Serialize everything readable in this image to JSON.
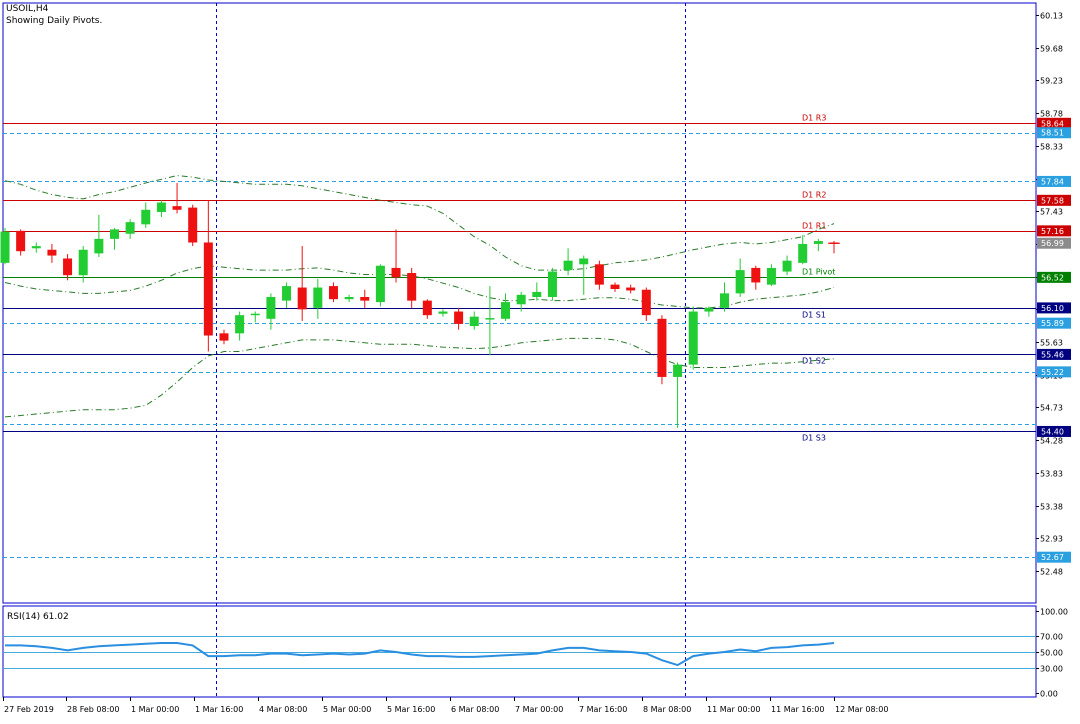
{
  "header": {
    "symbol": "USOIL,H4",
    "subtitle": "Showing Daily Pivots."
  },
  "colors": {
    "bull": "#22cc33",
    "bear": "#ee1111",
    "frame": "#0000cc",
    "axis_text": "#000000",
    "resistance_line": "#cc0000",
    "support_line": "#000080",
    "pivot_line": "#008000",
    "dotted_level": "#2aa0e0",
    "grid_dash": "#0000cc",
    "bands": "#2a7a2a",
    "rsi_line": "#2a8fe0",
    "rsi_level": "#44aadd"
  },
  "chart_data": [
    {
      "type": "candlestick",
      "title": "USOIL,H4",
      "subtitle": "Showing Daily Pivots.",
      "ylim": [
        52.1,
        60.3
      ],
      "y_ticks": [
        "60.13",
        "59.68",
        "59.23",
        "58.78",
        "58.33",
        "57.88",
        "57.43",
        "56.98",
        "56.53",
        "56.08",
        "55.63",
        "55.18",
        "54.73",
        "54.28",
        "53.83",
        "53.38",
        "52.93",
        "52.48"
      ],
      "x_ticks": [
        "27 Feb 2019",
        "28 Feb 08:00",
        "1 Mar 00:00",
        "1 Mar 16:00",
        "4 Mar 08:00",
        "5 Mar 00:00",
        "5 Mar 16:00",
        "6 Mar 08:00",
        "7 Mar 00:00",
        "7 Mar 16:00",
        "8 Mar 08:00",
        "11 Mar 00:00",
        "11 Mar 16:00",
        "12 Mar 08:00"
      ],
      "day_separators_after_candle": [
        13,
        43
      ],
      "candles": [
        {
          "o": 56.72,
          "h": 57.2,
          "l": 56.7,
          "c": 57.15
        },
        {
          "o": 57.16,
          "h": 57.18,
          "l": 56.82,
          "c": 56.88
        },
        {
          "o": 56.92,
          "h": 57.0,
          "l": 56.86,
          "c": 56.95
        },
        {
          "o": 56.9,
          "h": 56.98,
          "l": 56.72,
          "c": 56.82
        },
        {
          "o": 56.78,
          "h": 56.84,
          "l": 56.48,
          "c": 56.55
        },
        {
          "o": 56.55,
          "h": 56.95,
          "l": 56.45,
          "c": 56.9
        },
        {
          "o": 56.85,
          "h": 57.38,
          "l": 56.8,
          "c": 57.05
        },
        {
          "o": 57.05,
          "h": 57.2,
          "l": 56.9,
          "c": 57.18
        },
        {
          "o": 57.12,
          "h": 57.32,
          "l": 57.05,
          "c": 57.28
        },
        {
          "o": 57.25,
          "h": 57.55,
          "l": 57.2,
          "c": 57.45
        },
        {
          "o": 57.42,
          "h": 57.58,
          "l": 57.35,
          "c": 57.55
        },
        {
          "o": 57.5,
          "h": 57.82,
          "l": 57.4,
          "c": 57.45
        },
        {
          "o": 57.48,
          "h": 57.52,
          "l": 56.95,
          "c": 57.0
        },
        {
          "o": 57.0,
          "h": 57.58,
          "l": 55.5,
          "c": 55.72
        },
        {
          "o": 55.75,
          "h": 55.8,
          "l": 55.6,
          "c": 55.65
        },
        {
          "o": 55.75,
          "h": 56.05,
          "l": 55.65,
          "c": 56.0
        },
        {
          "o": 56.0,
          "h": 56.05,
          "l": 55.9,
          "c": 56.02
        },
        {
          "o": 55.95,
          "h": 56.3,
          "l": 55.8,
          "c": 56.25
        },
        {
          "o": 56.2,
          "h": 56.45,
          "l": 56.1,
          "c": 56.4
        },
        {
          "o": 56.38,
          "h": 56.95,
          "l": 55.92,
          "c": 56.08
        },
        {
          "o": 56.1,
          "h": 56.5,
          "l": 55.95,
          "c": 56.38
        },
        {
          "o": 56.4,
          "h": 56.45,
          "l": 56.18,
          "c": 56.22
        },
        {
          "o": 56.22,
          "h": 56.28,
          "l": 56.18,
          "c": 56.25
        },
        {
          "o": 56.25,
          "h": 56.35,
          "l": 56.1,
          "c": 56.2
        },
        {
          "o": 56.18,
          "h": 56.7,
          "l": 56.12,
          "c": 56.68
        },
        {
          "o": 56.65,
          "h": 57.18,
          "l": 56.45,
          "c": 56.52
        },
        {
          "o": 56.58,
          "h": 56.65,
          "l": 56.1,
          "c": 56.2
        },
        {
          "o": 56.2,
          "h": 56.22,
          "l": 55.95,
          "c": 56.0
        },
        {
          "o": 56.02,
          "h": 56.08,
          "l": 55.98,
          "c": 56.05
        },
        {
          "o": 56.05,
          "h": 56.1,
          "l": 55.8,
          "c": 55.88
        },
        {
          "o": 55.85,
          "h": 56.05,
          "l": 55.8,
          "c": 55.98
        },
        {
          "o": 55.95,
          "h": 56.4,
          "l": 55.45,
          "c": 55.96
        },
        {
          "o": 55.95,
          "h": 56.3,
          "l": 55.92,
          "c": 56.18
        },
        {
          "o": 56.15,
          "h": 56.32,
          "l": 56.05,
          "c": 56.28
        },
        {
          "o": 56.25,
          "h": 56.45,
          "l": 56.2,
          "c": 56.32
        },
        {
          "o": 56.25,
          "h": 56.65,
          "l": 56.2,
          "c": 56.6
        },
        {
          "o": 56.62,
          "h": 56.92,
          "l": 56.55,
          "c": 56.75
        },
        {
          "o": 56.7,
          "h": 56.82,
          "l": 56.28,
          "c": 56.78
        },
        {
          "o": 56.7,
          "h": 56.75,
          "l": 56.35,
          "c": 56.42
        },
        {
          "o": 56.42,
          "h": 56.45,
          "l": 56.32,
          "c": 56.36
        },
        {
          "o": 56.38,
          "h": 56.42,
          "l": 56.3,
          "c": 56.34
        },
        {
          "o": 56.35,
          "h": 56.38,
          "l": 55.92,
          "c": 56.0
        },
        {
          "o": 55.95,
          "h": 56.0,
          "l": 55.05,
          "c": 55.15
        },
        {
          "o": 55.15,
          "h": 55.35,
          "l": 54.45,
          "c": 55.32
        },
        {
          "o": 55.32,
          "h": 56.12,
          "l": 55.25,
          "c": 56.05
        },
        {
          "o": 56.05,
          "h": 56.12,
          "l": 55.98,
          "c": 56.1
        },
        {
          "o": 56.1,
          "h": 56.45,
          "l": 56.05,
          "c": 56.3
        },
        {
          "o": 56.3,
          "h": 56.78,
          "l": 56.25,
          "c": 56.62
        },
        {
          "o": 56.65,
          "h": 56.68,
          "l": 56.35,
          "c": 56.45
        },
        {
          "o": 56.42,
          "h": 56.7,
          "l": 56.4,
          "c": 56.65
        },
        {
          "o": 56.6,
          "h": 56.82,
          "l": 56.55,
          "c": 56.75
        },
        {
          "o": 56.72,
          "h": 57.1,
          "l": 56.7,
          "c": 56.98
        },
        {
          "o": 56.98,
          "h": 57.05,
          "l": 56.88,
          "c": 57.02
        },
        {
          "o": 57.0,
          "h": 57.02,
          "l": 56.85,
          "c": 56.99
        }
      ],
      "bollinger": {
        "upper": [
          57.85,
          57.8,
          57.72,
          57.66,
          57.62,
          57.6,
          57.66,
          57.7,
          57.76,
          57.82,
          57.87,
          57.92,
          57.9,
          57.86,
          57.84,
          57.82,
          57.8,
          57.8,
          57.8,
          57.78,
          57.74,
          57.7,
          57.66,
          57.62,
          57.58,
          57.55,
          57.52,
          57.5,
          57.4,
          57.24,
          57.08,
          56.96,
          56.8,
          56.68,
          56.62,
          56.62,
          56.62,
          56.64,
          56.68,
          56.72,
          56.74,
          56.76,
          56.8,
          56.85,
          56.9,
          56.94,
          56.98,
          57.0,
          56.98,
          57.0,
          57.04,
          57.08,
          57.18,
          57.26
        ],
        "middle": [
          56.45,
          56.4,
          56.36,
          56.34,
          56.32,
          56.3,
          56.3,
          56.32,
          56.34,
          56.4,
          56.48,
          56.58,
          56.64,
          56.68,
          56.66,
          56.64,
          56.62,
          56.62,
          56.62,
          56.64,
          56.65,
          56.62,
          56.58,
          56.56,
          56.56,
          56.56,
          56.54,
          56.5,
          56.44,
          56.38,
          56.3,
          56.24,
          56.2,
          56.2,
          56.22,
          56.2,
          56.2,
          56.22,
          56.24,
          56.24,
          56.22,
          56.18,
          56.14,
          56.12,
          56.1,
          56.1,
          56.12,
          56.18,
          56.22,
          56.24,
          56.26,
          56.28,
          56.32,
          56.38
        ],
        "lower": [
          54.6,
          54.62,
          54.64,
          54.66,
          54.68,
          54.7,
          54.7,
          54.7,
          54.72,
          54.76,
          54.9,
          55.08,
          55.28,
          55.44,
          55.5,
          55.5,
          55.54,
          55.58,
          55.62,
          55.66,
          55.66,
          55.66,
          55.64,
          55.62,
          55.6,
          55.6,
          55.6,
          55.58,
          55.56,
          55.55,
          55.54,
          55.55,
          55.58,
          55.62,
          55.64,
          55.66,
          55.68,
          55.68,
          55.68,
          55.66,
          55.6,
          55.5,
          55.4,
          55.32,
          55.28,
          55.28,
          55.28,
          55.3,
          55.32,
          55.34,
          55.34,
          55.36,
          55.38,
          55.4
        ]
      },
      "levels": [
        {
          "label": "D1 R3",
          "value": 58.64,
          "kind": "resistance"
        },
        {
          "label": "D1 R2",
          "value": 57.58,
          "kind": "resistance"
        },
        {
          "label": "D1 R1",
          "value": 57.16,
          "kind": "resistance"
        },
        {
          "label": "D1 Pivot",
          "value": 56.52,
          "kind": "pivot"
        },
        {
          "label": "D1 S1",
          "value": 56.1,
          "kind": "support"
        },
        {
          "label": "D1 S2",
          "value": 55.46,
          "kind": "support"
        },
        {
          "label": "D1 S3",
          "value": 54.4,
          "kind": "support"
        }
      ],
      "price_tags": [
        {
          "value": 58.64,
          "text": "58.64",
          "kind": "resistance"
        },
        {
          "value": 58.51,
          "text": "58.51",
          "kind": "dotted"
        },
        {
          "value": 57.84,
          "text": "57.84",
          "kind": "dotted"
        },
        {
          "value": 57.58,
          "text": "57.58",
          "kind": "resistance"
        },
        {
          "value": 57.16,
          "text": "57.16",
          "kind": "resistance"
        },
        {
          "value": 56.99,
          "text": "56.99",
          "kind": "current"
        },
        {
          "value": 56.52,
          "text": "56.52",
          "kind": "pivot"
        },
        {
          "value": 56.1,
          "text": "56.10",
          "kind": "support"
        },
        {
          "value": 55.89,
          "text": "55.89",
          "kind": "dotted"
        },
        {
          "value": 55.46,
          "text": "55.46",
          "kind": "support"
        },
        {
          "value": 55.22,
          "text": "55.22",
          "kind": "dotted"
        },
        {
          "value": 54.4,
          "text": "54.40",
          "kind": "support"
        },
        {
          "value": 52.67,
          "text": "52.67",
          "kind": "dotted"
        }
      ],
      "dotted_levels": [
        58.51,
        57.84,
        55.89,
        55.22,
        54.5,
        52.67
      ],
      "current_price": 56.99
    },
    {
      "type": "line",
      "title": "RSI(14) 61.02",
      "ylim": [
        0,
        100
      ],
      "y_ticks": [
        "100.00",
        "70.00",
        "50.00",
        "30.00",
        "0.00"
      ],
      "levels": [
        70,
        50,
        30
      ],
      "series": [
        {
          "name": "RSI(14)",
          "values": [
            58,
            58,
            57,
            55,
            52,
            55,
            57,
            58,
            59,
            60,
            61,
            61,
            58,
            45,
            45,
            46,
            46,
            48,
            48,
            46,
            47,
            48,
            47,
            48,
            52,
            50,
            47,
            45,
            45,
            44,
            44,
            45,
            46,
            47,
            48,
            52,
            55,
            55,
            52,
            51,
            50,
            48,
            40,
            34,
            45,
            48,
            50,
            53,
            51,
            55,
            56,
            58,
            59,
            61
          ]
        }
      ]
    }
  ]
}
